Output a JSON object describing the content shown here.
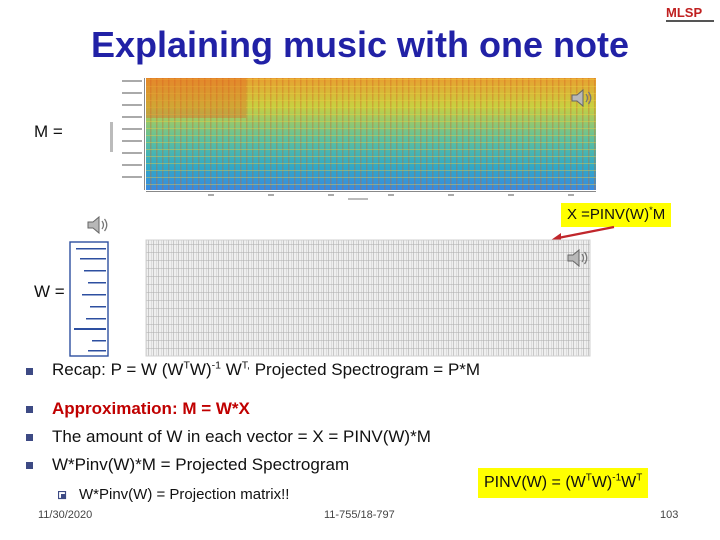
{
  "title": "Explaining music with one note",
  "logo_text": "MLSP",
  "labels": {
    "m": "M =",
    "w": "W ="
  },
  "callouts": {
    "x_formula": [
      "X =PINV(W)",
      "*",
      "M"
    ],
    "pinv_formula": [
      "PINV(W) = (W",
      "T",
      "W)",
      "-1",
      "W",
      "T"
    ]
  },
  "bullets": [
    {
      "parts": [
        "Recap:  P = W (W",
        "T",
        "W)",
        "-1",
        " W",
        "T,",
        " Projected Spectrogram = P*M"
      ]
    },
    {
      "text": "Approximation:  M = W*X"
    },
    {
      "text": "The amount of W in each vector = X = PINV(W)*M"
    },
    {
      "text": "W*Pinv(W)*M = Projected Spectrogram"
    }
  ],
  "sub_bullet": {
    "text": "W*Pinv(W) = Projection matrix!!"
  },
  "footer": {
    "date": "11/30/2020",
    "course": "11-755/18-797",
    "page": "103"
  },
  "colors": {
    "title": "#2121a6",
    "highlight": "#ffff00",
    "emphasis": "#c00000",
    "bullet": "#3d4a84",
    "arrow": "#c0262b"
  },
  "icons": [
    "speaker-icon",
    "speaker-icon",
    "speaker-icon",
    "square-bullet-icon",
    "hollow-square-bullet-icon"
  ]
}
